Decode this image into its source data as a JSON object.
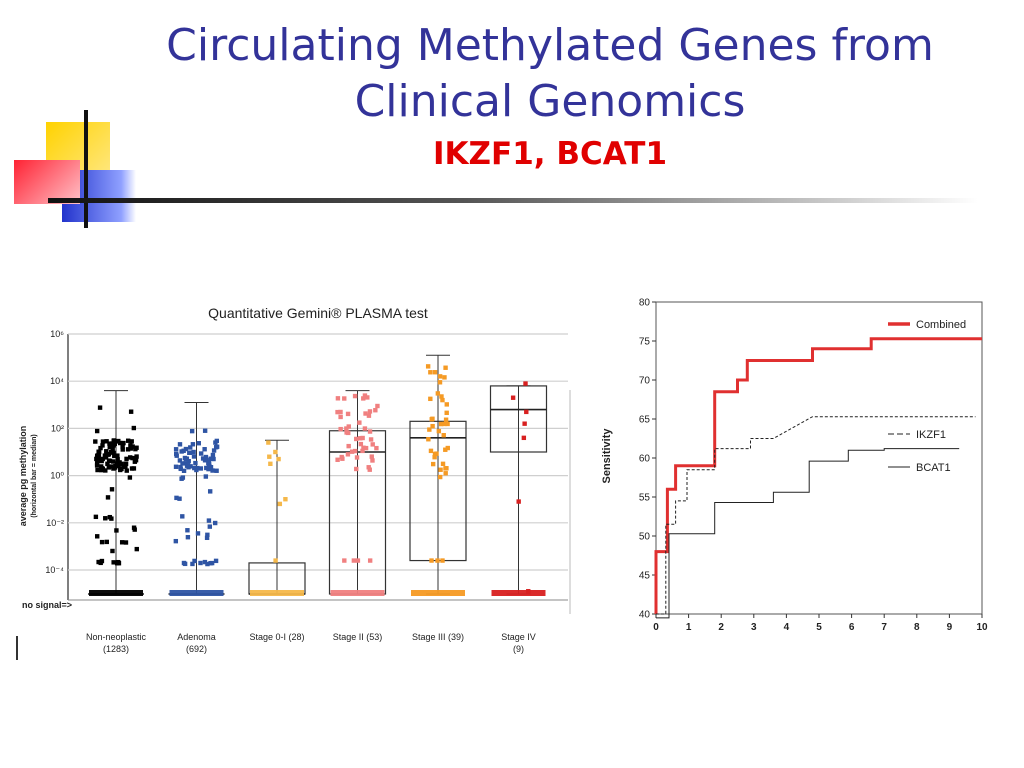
{
  "slide": {
    "title_line1": "Circulating Methylated Genes from",
    "title_line2": "Clinical Genomics",
    "subtitle": "IKZF1, BCAT1"
  },
  "colors": {
    "title": "#333399",
    "subtitle": "#e00000",
    "deco_yellow": "#ffd200",
    "deco_blue": "#2233cc",
    "deco_red": "#ff3344"
  },
  "chart_data": [
    {
      "type": "box",
      "title": "Quantitative Gemini® PLASMA test",
      "ylabel": "average pg methylation",
      "ylabel2": "(horizontal bar = median)",
      "yscale": "log",
      "ylim": [
        1e-05,
        1000000
      ],
      "yticks": [
        "10⁶",
        "10⁴",
        "10²",
        "10⁰",
        "10⁻²",
        "10⁻⁴"
      ],
      "ytick_values": [
        1000000,
        10000,
        100,
        1,
        0.01,
        0.0001
      ],
      "no_signal_label": "no signal=>",
      "categories": [
        {
          "name": "Non-neoplastic",
          "n": "(1283)",
          "color": "#000000",
          "min_exp": -5,
          "q1_exp": -5,
          "median_exp": -5,
          "q3_exp": -5,
          "max_exp": 3.6
        },
        {
          "name": "Adenoma",
          "n": "(692)",
          "color": "#2f55a4",
          "min_exp": -5,
          "q1_exp": -5,
          "median_exp": -5,
          "q3_exp": -5,
          "max_exp": 3.1
        },
        {
          "name": "Stage 0-I (28)",
          "n": "",
          "color": "#f5b84a",
          "min_exp": -5,
          "q1_exp": -5,
          "median_exp": -5,
          "q3_exp": -3.7,
          "max_exp": 1.5
        },
        {
          "name": "Stage II (53)",
          "n": "",
          "color": "#f08080",
          "min_exp": -5,
          "q1_exp": -5,
          "median_exp": 1.0,
          "q3_exp": 1.9,
          "max_exp": 3.6
        },
        {
          "name": "Stage III (39)",
          "n": "",
          "color": "#f59a24",
          "min_exp": -5,
          "q1_exp": -3.6,
          "median_exp": 1.6,
          "q3_exp": 2.3,
          "max_exp": 5.1
        },
        {
          "name": "Stage IV",
          "n": "(9)",
          "color": "#d82020",
          "min_exp": -5,
          "q1_exp": 1.0,
          "median_exp": 2.8,
          "q3_exp": 3.8,
          "max_exp": 3.8
        }
      ]
    },
    {
      "type": "line",
      "ylabel": "Sensitivity",
      "xlim": [
        0,
        10
      ],
      "ylim": [
        40,
        80
      ],
      "xticks": [
        0,
        1,
        2,
        3,
        4,
        5,
        6,
        7,
        8,
        9,
        10
      ],
      "yticks": [
        40,
        45,
        50,
        55,
        60,
        65,
        70,
        75,
        80
      ],
      "legend_position": "right",
      "series": [
        {
          "name": "Combined",
          "color": "#e03030",
          "style": "solid-thick",
          "points": [
            [
              0,
              40
            ],
            [
              0,
              48
            ],
            [
              0.35,
              48
            ],
            [
              0.35,
              56
            ],
            [
              0.6,
              56
            ],
            [
              0.6,
              59
            ],
            [
              1.8,
              59
            ],
            [
              1.8,
              68.5
            ],
            [
              2.5,
              68.5
            ],
            [
              2.5,
              70
            ],
            [
              2.8,
              70
            ],
            [
              2.8,
              72.5
            ],
            [
              4.8,
              72.5
            ],
            [
              4.8,
              74
            ],
            [
              6.6,
              74
            ],
            [
              6.6,
              75.3
            ],
            [
              10,
              75.3
            ]
          ]
        },
        {
          "name": "IKZF1",
          "color": "#222222",
          "style": "dashed",
          "points": [
            [
              0,
              40
            ],
            [
              0.3,
              40
            ],
            [
              0.3,
              51.5
            ],
            [
              0.6,
              51.5
            ],
            [
              0.6,
              54.5
            ],
            [
              0.95,
              54.5
            ],
            [
              0.95,
              58.5
            ],
            [
              1.8,
              58.5
            ],
            [
              1.8,
              61.2
            ],
            [
              2.9,
              61.2
            ],
            [
              2.9,
              62.5
            ],
            [
              3.6,
              62.5
            ],
            [
              4.8,
              65.3
            ],
            [
              9.8,
              65.3
            ]
          ]
        },
        {
          "name": "BCAT1",
          "color": "#222222",
          "style": "solid-thin",
          "points": [
            [
              0,
              39.5
            ],
            [
              0.4,
              39.5
            ],
            [
              0.4,
              50.3
            ],
            [
              1.8,
              50.3
            ],
            [
              1.8,
              54.3
            ],
            [
              3.6,
              54.3
            ],
            [
              3.6,
              55.6
            ],
            [
              4.7,
              55.6
            ],
            [
              4.7,
              59.6
            ],
            [
              5.9,
              59.6
            ],
            [
              5.9,
              61
            ],
            [
              7.0,
              61
            ],
            [
              7.0,
              61.2
            ],
            [
              9.3,
              61.2
            ]
          ]
        }
      ]
    }
  ]
}
